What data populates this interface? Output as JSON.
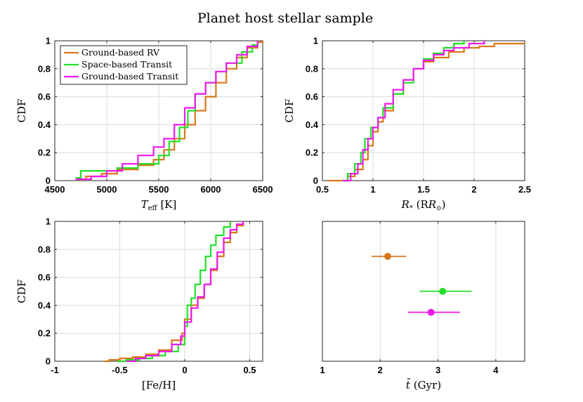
{
  "title": "Planet host stellar sample",
  "colors": {
    "rv": "#d9781a",
    "space": "#22e02a",
    "ground": "#ee1aee"
  },
  "chart_data": [
    {
      "type": "line",
      "xlabel": "T_eff [K]",
      "xlabel_main": "T",
      "xlabel_sub": "eff",
      "xlabel_suffix": "[K]",
      "ylabel": "CDF",
      "xlim": [
        4500,
        6500
      ],
      "ylim": [
        0,
        1
      ],
      "xticks": [
        "4500",
        "5000",
        "5500",
        "6000",
        "6500"
      ],
      "yticks": [
        "0",
        "0.2",
        "0.4",
        "0.6",
        "0.8",
        "1"
      ],
      "legend": [
        "Ground-based RV",
        "Space-based Transit",
        "Ground-based Transit"
      ],
      "legend_position": "top-left",
      "series": [
        {
          "name": "Ground-based RV",
          "points": [
            [
              4700,
              0.01
            ],
            [
              4800,
              0.03
            ],
            [
              4950,
              0.05
            ],
            [
              5100,
              0.08
            ],
            [
              5300,
              0.11
            ],
            [
              5450,
              0.15
            ],
            [
              5550,
              0.22
            ],
            [
              5650,
              0.3
            ],
            [
              5750,
              0.4
            ],
            [
              5850,
              0.5
            ],
            [
              5950,
              0.6
            ],
            [
              6050,
              0.7
            ],
            [
              6150,
              0.8
            ],
            [
              6250,
              0.88
            ],
            [
              6350,
              0.95
            ],
            [
              6450,
              0.99
            ],
            [
              6500,
              1.0
            ]
          ]
        },
        {
          "name": "Space-based Transit",
          "points": [
            [
              4700,
              0.02
            ],
            [
              4750,
              0.07
            ],
            [
              5000,
              0.07
            ],
            [
              5100,
              0.09
            ],
            [
              5300,
              0.12
            ],
            [
              5500,
              0.18
            ],
            [
              5600,
              0.28
            ],
            [
              5700,
              0.38
            ],
            [
              5780,
              0.5
            ],
            [
              5850,
              0.62
            ],
            [
              5950,
              0.7
            ],
            [
              6050,
              0.78
            ],
            [
              6150,
              0.84
            ],
            [
              6300,
              0.92
            ],
            [
              6400,
              0.97
            ],
            [
              6450,
              1.0
            ]
          ]
        },
        {
          "name": "Ground-based Transit",
          "points": [
            [
              4700,
              0.01
            ],
            [
              4850,
              0.03
            ],
            [
              5000,
              0.07
            ],
            [
              5150,
              0.12
            ],
            [
              5300,
              0.18
            ],
            [
              5450,
              0.24
            ],
            [
              5550,
              0.3
            ],
            [
              5650,
              0.4
            ],
            [
              5750,
              0.52
            ],
            [
              5850,
              0.62
            ],
            [
              5950,
              0.7
            ],
            [
              6050,
              0.78
            ],
            [
              6150,
              0.84
            ],
            [
              6250,
              0.9
            ],
            [
              6350,
              0.96
            ],
            [
              6450,
              1.0
            ]
          ]
        }
      ]
    },
    {
      "type": "line",
      "xlabel": "R_* (R_sun)",
      "xlabel_main": "R",
      "xlabel_sub": "*",
      "xlabel_suffix": "(R",
      "xlabel_sun": "⊙",
      "xlabel_close": ")",
      "ylabel": "CDF",
      "xlim": [
        0.5,
        2.5
      ],
      "ylim": [
        0,
        1
      ],
      "xticks": [
        "0.5",
        "1",
        "1.5",
        "2",
        "2.5"
      ],
      "yticks": [
        "0",
        "0.2",
        "0.4",
        "0.6",
        "0.8",
        "1"
      ],
      "series": [
        {
          "name": "Ground-based RV",
          "points": [
            [
              0.55,
              0.0
            ],
            [
              0.7,
              0.0
            ],
            [
              0.75,
              0.03
            ],
            [
              0.82,
              0.08
            ],
            [
              0.9,
              0.15
            ],
            [
              0.95,
              0.25
            ],
            [
              1.0,
              0.35
            ],
            [
              1.05,
              0.42
            ],
            [
              1.1,
              0.5
            ],
            [
              1.2,
              0.62
            ],
            [
              1.3,
              0.72
            ],
            [
              1.4,
              0.8
            ],
            [
              1.5,
              0.85
            ],
            [
              1.6,
              0.88
            ],
            [
              1.75,
              0.92
            ],
            [
              1.9,
              0.95
            ],
            [
              2.05,
              0.96
            ],
            [
              2.2,
              0.98
            ],
            [
              2.5,
              0.98
            ]
          ]
        },
        {
          "name": "Space-based Transit",
          "points": [
            [
              0.7,
              0.0
            ],
            [
              0.75,
              0.05
            ],
            [
              0.82,
              0.12
            ],
            [
              0.88,
              0.2
            ],
            [
              0.92,
              0.3
            ],
            [
              0.98,
              0.38
            ],
            [
              1.05,
              0.45
            ],
            [
              1.1,
              0.52
            ],
            [
              1.2,
              0.62
            ],
            [
              1.3,
              0.7
            ],
            [
              1.4,
              0.8
            ],
            [
              1.5,
              0.87
            ],
            [
              1.6,
              0.91
            ],
            [
              1.7,
              0.95
            ],
            [
              1.8,
              0.98
            ],
            [
              1.9,
              1.0
            ]
          ]
        },
        {
          "name": "Ground-based Transit",
          "points": [
            [
              0.7,
              0.0
            ],
            [
              0.78,
              0.05
            ],
            [
              0.85,
              0.12
            ],
            [
              0.9,
              0.22
            ],
            [
              0.95,
              0.3
            ],
            [
              1.0,
              0.38
            ],
            [
              1.05,
              0.45
            ],
            [
              1.12,
              0.55
            ],
            [
              1.2,
              0.65
            ],
            [
              1.3,
              0.72
            ],
            [
              1.4,
              0.8
            ],
            [
              1.5,
              0.86
            ],
            [
              1.6,
              0.9
            ],
            [
              1.7,
              0.93
            ],
            [
              1.8,
              0.95
            ],
            [
              1.95,
              0.98
            ],
            [
              2.1,
              1.0
            ]
          ]
        }
      ]
    },
    {
      "type": "line",
      "xlabel": "[Fe/H]",
      "ylabel": "CDF",
      "xlim": [
        -1,
        0.6
      ],
      "ylim": [
        0,
        1
      ],
      "xticks": [
        "-1",
        "-0.5",
        "0",
        "0.5"
      ],
      "xtick_values": [
        -1,
        -0.5,
        0,
        0.5
      ],
      "yticks": [
        "0",
        "0.2",
        "0.4",
        "0.6",
        "0.8",
        "1"
      ],
      "series": [
        {
          "name": "Ground-based RV",
          "points": [
            [
              -0.62,
              0.0
            ],
            [
              -0.58,
              0.01
            ],
            [
              -0.5,
              0.02
            ],
            [
              -0.4,
              0.03
            ],
            [
              -0.3,
              0.05
            ],
            [
              -0.2,
              0.08
            ],
            [
              -0.1,
              0.15
            ],
            [
              -0.02,
              0.2
            ],
            [
              0.0,
              0.3
            ],
            [
              0.05,
              0.4
            ],
            [
              0.1,
              0.45
            ],
            [
              0.15,
              0.55
            ],
            [
              0.2,
              0.65
            ],
            [
              0.25,
              0.75
            ],
            [
              0.3,
              0.85
            ],
            [
              0.35,
              0.92
            ],
            [
              0.4,
              0.97
            ],
            [
              0.45,
              1.0
            ]
          ]
        },
        {
          "name": "Space-based Transit",
          "points": [
            [
              -0.52,
              0.0
            ],
            [
              -0.45,
              0.01
            ],
            [
              -0.35,
              0.02
            ],
            [
              -0.25,
              0.04
            ],
            [
              -0.15,
              0.07
            ],
            [
              -0.05,
              0.12
            ],
            [
              0.0,
              0.25
            ],
            [
              0.02,
              0.4
            ],
            [
              0.05,
              0.45
            ],
            [
              0.08,
              0.55
            ],
            [
              0.12,
              0.65
            ],
            [
              0.16,
              0.75
            ],
            [
              0.2,
              0.83
            ],
            [
              0.24,
              0.9
            ],
            [
              0.3,
              0.96
            ],
            [
              0.35,
              1.0
            ]
          ]
        },
        {
          "name": "Ground-based Transit",
          "points": [
            [
              -0.45,
              0.0
            ],
            [
              -0.38,
              0.02
            ],
            [
              -0.3,
              0.04
            ],
            [
              -0.2,
              0.07
            ],
            [
              -0.1,
              0.12
            ],
            [
              -0.03,
              0.18
            ],
            [
              0.0,
              0.28
            ],
            [
              0.05,
              0.38
            ],
            [
              0.1,
              0.46
            ],
            [
              0.15,
              0.55
            ],
            [
              0.2,
              0.66
            ],
            [
              0.25,
              0.78
            ],
            [
              0.3,
              0.88
            ],
            [
              0.35,
              0.94
            ],
            [
              0.4,
              0.98
            ],
            [
              0.45,
              1.0
            ]
          ]
        }
      ]
    },
    {
      "type": "scatter",
      "xlabel": "t̄ (Gyr)",
      "xlabel_main": "t̄",
      "xlabel_suffix": "(Gyr)",
      "xlim": [
        1,
        4.5
      ],
      "xticks": [
        "1",
        "2",
        "3",
        "4"
      ],
      "points": [
        {
          "name": "Ground-based RV",
          "x": 2.13,
          "xerr_low": 1.85,
          "xerr_high": 2.45,
          "y": 3
        },
        {
          "name": "Space-based Transit",
          "x": 3.08,
          "xerr_low": 2.68,
          "xerr_high": 3.58,
          "y": 2
        },
        {
          "name": "Ground-based Transit",
          "x": 2.88,
          "xerr_low": 2.48,
          "xerr_high": 3.38,
          "y": 1.4
        }
      ]
    }
  ]
}
